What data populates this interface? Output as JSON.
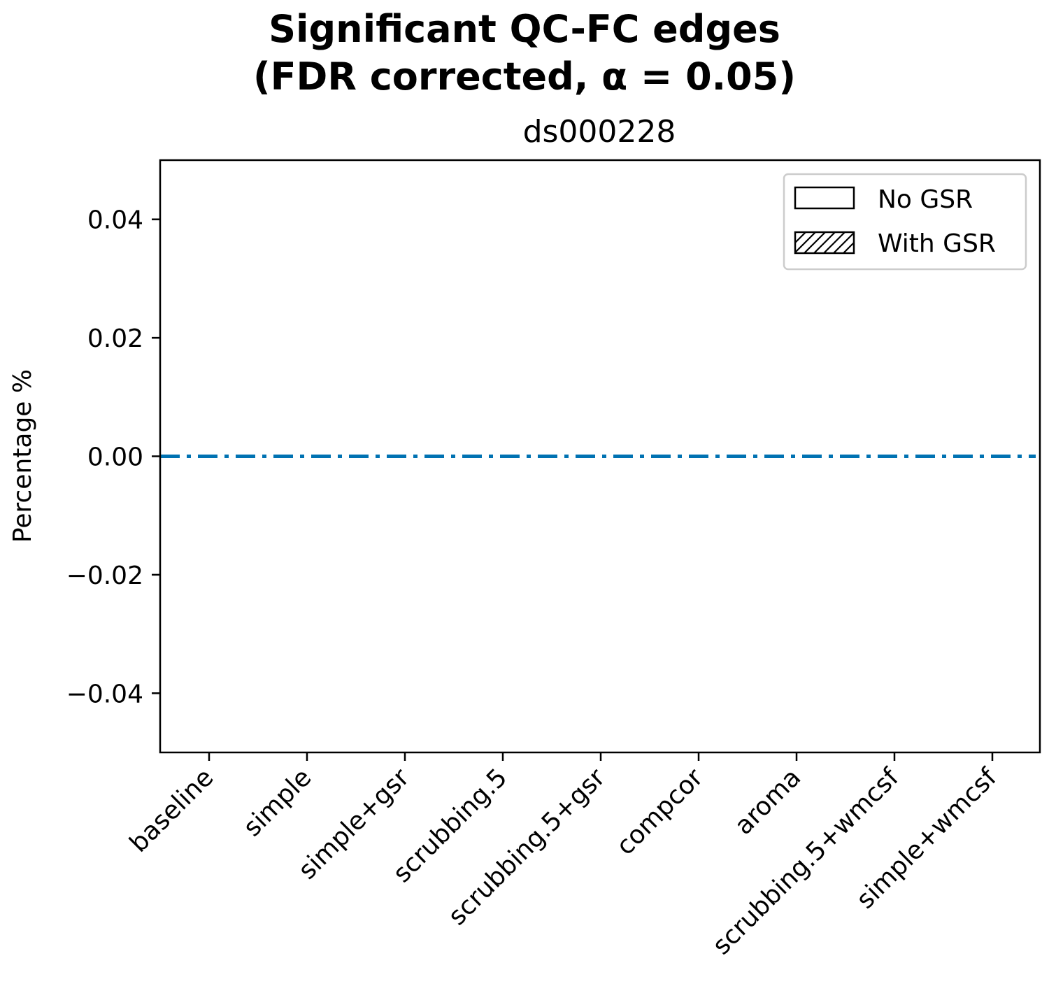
{
  "chart_data": {
    "type": "bar",
    "title": "Significant QC-FC edges\n(FDR corrected, α = 0.05)",
    "title_lines": [
      "Significant QC-FC edges",
      "(FDR corrected, α = 0.05)"
    ],
    "subtitle": "ds000228",
    "xlabel": "",
    "ylabel": "Percentage %",
    "ylim": [
      -0.05,
      0.05
    ],
    "yticks": [
      -0.04,
      -0.02,
      0.0,
      0.02,
      0.04
    ],
    "ytick_labels": [
      "−0.04",
      "−0.02",
      "0.00",
      "0.02",
      "0.04"
    ],
    "categories": [
      "baseline",
      "simple",
      "simple+gsr",
      "scrubbing.5",
      "scrubbing.5+gsr",
      "compcor",
      "aroma",
      "scrubbing.5+wmcsf",
      "simple+wmcsf"
    ],
    "series": [
      {
        "name": "No GSR",
        "hatch": "none",
        "values": [
          0,
          0,
          0,
          0,
          0,
          0,
          0,
          0,
          0
        ]
      },
      {
        "name": "With GSR",
        "hatch": "diagonal",
        "values": [
          0,
          0,
          0,
          0,
          0,
          0,
          0,
          0,
          0
        ]
      }
    ],
    "reference_line": {
      "y": 0.0,
      "style": "dash-dot",
      "color": "#0072b2"
    },
    "legend": {
      "placement": "top-right"
    },
    "grid": false
  }
}
